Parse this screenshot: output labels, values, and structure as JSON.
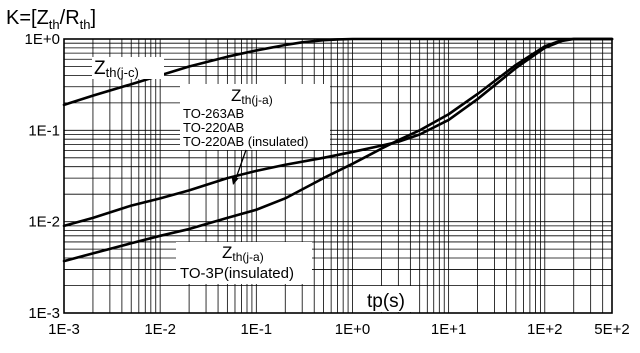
{
  "chart_data": {
    "type": "line",
    "title_parts": {
      "k": "K=[Z",
      "th1": "th",
      "slash": "/R",
      "th2": "th",
      "close": "]"
    },
    "xlabel": "tp(s)",
    "x_scale": "log",
    "y_scale": "log",
    "xlim": [
      0.001,
      500
    ],
    "ylim": [
      0.001,
      1
    ],
    "x_major_ticks": [
      0.001,
      0.01,
      0.1,
      1,
      10,
      100,
      500
    ],
    "x_tick_labels": [
      "1E-3",
      "1E-2",
      "1E-1",
      "1E+0",
      "1E+1",
      "1E+2",
      "5E+2"
    ],
    "y_major_ticks": [
      0.001,
      0.01,
      0.1,
      1
    ],
    "y_tick_labels": [
      "1E-3",
      "1E-2",
      "1E-1",
      "1E+0"
    ],
    "grid": true,
    "series": [
      {
        "label_parts": {
          "z": "Z",
          "sub": "th(j-c)"
        },
        "x": [
          0.001,
          0.002,
          0.005,
          0.01,
          0.02,
          0.05,
          0.1,
          0.2,
          0.3,
          0.5,
          0.7,
          1,
          2,
          500
        ],
        "y": [
          0.19,
          0.24,
          0.32,
          0.4,
          0.5,
          0.64,
          0.75,
          0.86,
          0.92,
          0.97,
          0.99,
          1,
          1,
          1
        ]
      },
      {
        "label_parts": {
          "z": "Z",
          "sub": "th(j-a)"
        },
        "label_lines": [
          "TO-263AB",
          "TO-220AB",
          "TO-220AB (insulated)"
        ],
        "x": [
          0.001,
          0.002,
          0.005,
          0.01,
          0.02,
          0.05,
          0.1,
          0.2,
          0.5,
          1,
          2,
          3,
          5,
          10,
          20,
          50,
          100,
          150,
          200,
          500
        ],
        "y": [
          0.009,
          0.011,
          0.015,
          0.018,
          0.022,
          0.03,
          0.036,
          0.042,
          0.05,
          0.058,
          0.068,
          0.075,
          0.09,
          0.13,
          0.22,
          0.48,
          0.8,
          0.95,
          1,
          1
        ]
      },
      {
        "label_parts": {
          "z": "Z",
          "sub": "th(j-a)"
        },
        "label_lines": [
          "TO-3P(insulated)"
        ],
        "x": [
          0.001,
          0.002,
          0.005,
          0.01,
          0.02,
          0.05,
          0.1,
          0.2,
          0.5,
          1,
          2,
          3,
          5,
          10,
          20,
          50,
          100,
          150,
          200,
          500
        ],
        "y": [
          0.0037,
          0.0045,
          0.0058,
          0.007,
          0.0083,
          0.011,
          0.0135,
          0.018,
          0.03,
          0.043,
          0.063,
          0.078,
          0.1,
          0.15,
          0.25,
          0.52,
          0.83,
          0.97,
          1,
          1
        ]
      }
    ]
  }
}
